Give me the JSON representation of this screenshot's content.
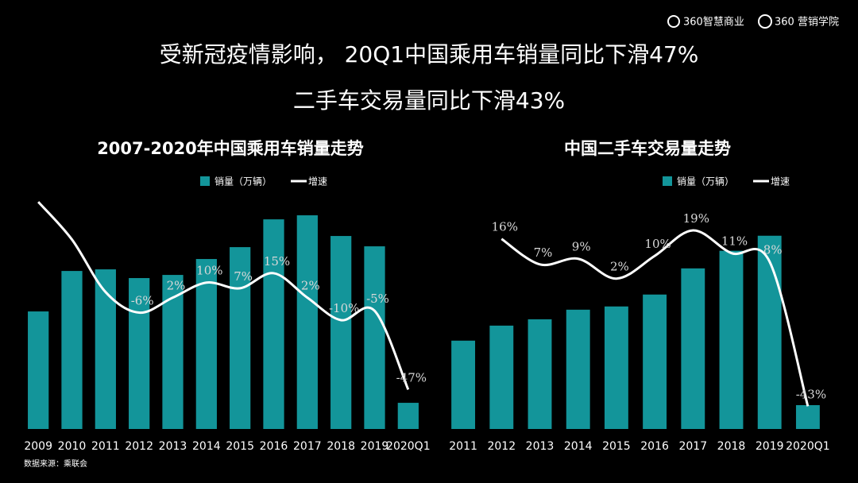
{
  "header": {
    "logos": [
      "360智慧商业",
      "360 营销学院"
    ]
  },
  "title_lines": [
    "受新冠疫情影响， 20Q1中国乘用车销量同比下滑47%",
    "二手车交易量同比下滑43%"
  ],
  "source": "数据来源：乘联会",
  "chart_data": [
    {
      "type": "bar",
      "title": "2007-2020年中国乘用车销量走势",
      "categories": [
        "2009",
        "2010",
        "2011",
        "2012",
        "2013",
        "2014",
        "2015",
        "2016",
        "2017",
        "2018",
        "2019",
        "2020Q1"
      ],
      "series": [
        {
          "name": "销量（万辆）",
          "type": "bar",
          "color": "#13959a",
          "values": [
            1307,
            1757,
            1775,
            1678,
            1713,
            1890,
            2022,
            2331,
            2376,
            2146,
            2031,
            291
          ]
        },
        {
          "name": "增速",
          "type": "line",
          "color": "#ffffff",
          "axis": "y2",
          "values": [
            53,
            33,
            5,
            -6,
            2,
            10,
            7,
            15,
            2,
            -10,
            -5,
            -47
          ],
          "value_labels": [
            null,
            null,
            null,
            "-6%",
            "2%",
            "10%",
            "7%",
            "15%",
            "2%",
            "-10%",
            "-5%",
            "-47%"
          ]
        }
      ],
      "ylim": [
        0,
        2650
      ],
      "y2lim": [
        -68,
        59
      ]
    },
    {
      "type": "bar",
      "title": "中国二手车交易量走势",
      "categories": [
        "2011",
        "2012",
        "2013",
        "2014",
        "2015",
        "2016",
        "2017",
        "2018",
        "2019",
        "2020Q1"
      ],
      "series": [
        {
          "name": "销量（万辆）",
          "type": "bar",
          "color": "#13959a",
          "values": [
            682,
            798,
            847,
            921,
            946,
            1038,
            1240,
            1376,
            1492,
            184
          ]
        },
        {
          "name": "增速",
          "type": "line",
          "color": "#ffffff",
          "axis": "y2",
          "values": [
            null,
            16,
            7,
            9,
            2,
            10,
            19,
            11,
            8,
            -43
          ],
          "value_labels": [
            null,
            "16%",
            "7%",
            "9%",
            "2%",
            "10%",
            "19%",
            "11%",
            "8%",
            "-43%"
          ]
        }
      ],
      "ylim": [
        0,
        1840
      ],
      "y2lim": [
        -51,
        33
      ]
    }
  ]
}
